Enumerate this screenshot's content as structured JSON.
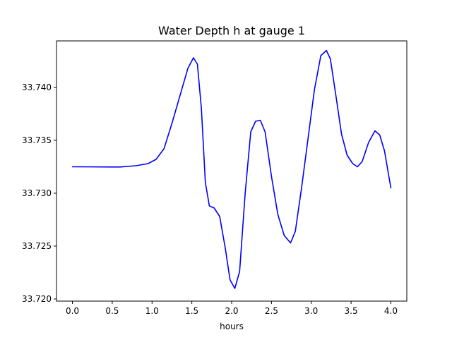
{
  "chart_data": {
    "type": "line",
    "title": "Water Depth h at gauge 1",
    "xlabel": "hours",
    "ylabel": "",
    "xlim": [
      -0.2,
      4.2
    ],
    "ylim": [
      33.7198,
      33.7444
    ],
    "x_ticks": [
      0.0,
      0.5,
      1.0,
      1.5,
      2.0,
      2.5,
      3.0,
      3.5,
      4.0
    ],
    "x_tick_labels": [
      "0.0",
      "0.5",
      "1.0",
      "1.5",
      "2.0",
      "2.5",
      "3.0",
      "3.5",
      "4.0"
    ],
    "y_ticks": [
      33.72,
      33.725,
      33.73,
      33.735,
      33.74
    ],
    "y_tick_labels": [
      "33.720",
      "33.725",
      "33.730",
      "33.735",
      "33.740"
    ],
    "grid": false,
    "series": [
      {
        "color": "#0000ff",
        "points": [
          [
            0.0,
            33.7325
          ],
          [
            0.5,
            33.73248
          ],
          [
            0.6,
            33.73248
          ],
          [
            0.8,
            33.7326
          ],
          [
            0.95,
            33.7328
          ],
          [
            1.05,
            33.7332
          ],
          [
            1.15,
            33.7342
          ],
          [
            1.25,
            33.7366
          ],
          [
            1.35,
            33.7392
          ],
          [
            1.45,
            33.7418
          ],
          [
            1.52,
            33.7428
          ],
          [
            1.57,
            33.7422
          ],
          [
            1.62,
            33.738
          ],
          [
            1.67,
            33.731
          ],
          [
            1.72,
            33.7288
          ],
          [
            1.78,
            33.7286
          ],
          [
            1.85,
            33.7278
          ],
          [
            1.92,
            33.7248
          ],
          [
            1.98,
            33.7218
          ],
          [
            2.04,
            33.721
          ],
          [
            2.1,
            33.7226
          ],
          [
            2.17,
            33.73
          ],
          [
            2.24,
            33.7358
          ],
          [
            2.3,
            33.7368
          ],
          [
            2.36,
            33.7369
          ],
          [
            2.42,
            33.7358
          ],
          [
            2.5,
            33.7316
          ],
          [
            2.58,
            33.728
          ],
          [
            2.66,
            33.726
          ],
          [
            2.74,
            33.7253
          ],
          [
            2.8,
            33.7264
          ],
          [
            2.88,
            33.7306
          ],
          [
            2.96,
            33.7352
          ],
          [
            3.04,
            33.7398
          ],
          [
            3.12,
            33.743
          ],
          [
            3.19,
            33.7435
          ],
          [
            3.24,
            33.7427
          ],
          [
            3.31,
            33.7392
          ],
          [
            3.38,
            33.7356
          ],
          [
            3.45,
            33.7336
          ],
          [
            3.52,
            33.7328
          ],
          [
            3.58,
            33.7325
          ],
          [
            3.64,
            33.733
          ],
          [
            3.72,
            33.7348
          ],
          [
            3.8,
            33.7359
          ],
          [
            3.86,
            33.7355
          ],
          [
            3.92,
            33.734
          ],
          [
            3.97,
            33.7318
          ],
          [
            4.0,
            33.7305
          ]
        ]
      }
    ]
  }
}
